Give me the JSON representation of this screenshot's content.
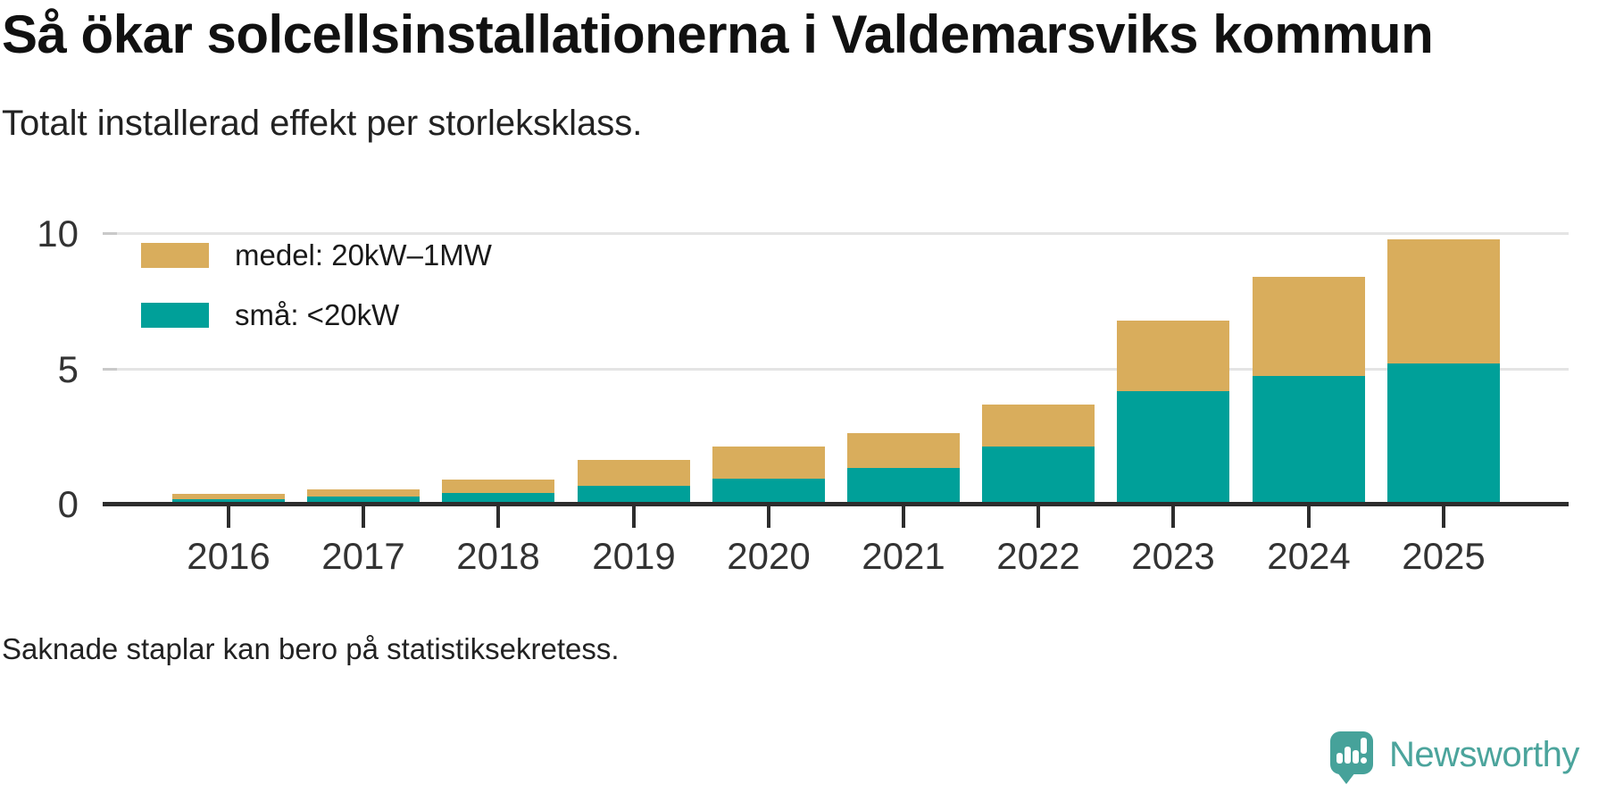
{
  "header": {
    "title": "Så ökar solcellsinstallationerna i Valdemarsviks kommun",
    "subtitle": "Totalt installerad effekt per storleksklass."
  },
  "legend": {
    "items": [
      {
        "label": "medel: 20kW–1MW",
        "color": "#d9ad5c"
      },
      {
        "label": "små: <20kW",
        "color": "#00a099"
      }
    ]
  },
  "footer": {
    "note": "Saknade staplar kan bero på statistiksekretess.",
    "brand": "Newsworthy",
    "brand_color": "#4ba49c"
  },
  "chart_data": {
    "type": "bar",
    "stacked": true,
    "title": "Så ökar solcellsinstallationerna i Valdemarsviks kommun",
    "subtitle": "Totalt installerad effekt per storleksklass.",
    "note": "Saknade staplar kan bero på statistiksekretess.",
    "categories": [
      "2016",
      "2017",
      "2018",
      "2019",
      "2020",
      "2021",
      "2022",
      "2023",
      "2024",
      "2025"
    ],
    "series": [
      {
        "name": "små: <20kW",
        "color": "#00a099",
        "values": [
          0.2,
          0.3,
          0.43,
          0.68,
          0.95,
          1.35,
          2.15,
          4.2,
          4.75,
          5.2
        ]
      },
      {
        "name": "medel: 20kW–1MW",
        "color": "#d9ad5c",
        "values": [
          0.2,
          0.28,
          0.5,
          0.97,
          1.2,
          1.3,
          1.55,
          2.6,
          3.65,
          4.6
        ]
      }
    ],
    "totals": [
      0.4,
      0.58,
      0.93,
      1.65,
      2.15,
      2.65,
      3.7,
      6.8,
      8.4,
      9.8
    ],
    "xlabel": "",
    "ylabel": "",
    "ylim": [
      0,
      10
    ],
    "yticks": [
      0,
      5,
      10
    ],
    "grid": "horizontal",
    "legend_position": "top-left-inside"
  }
}
